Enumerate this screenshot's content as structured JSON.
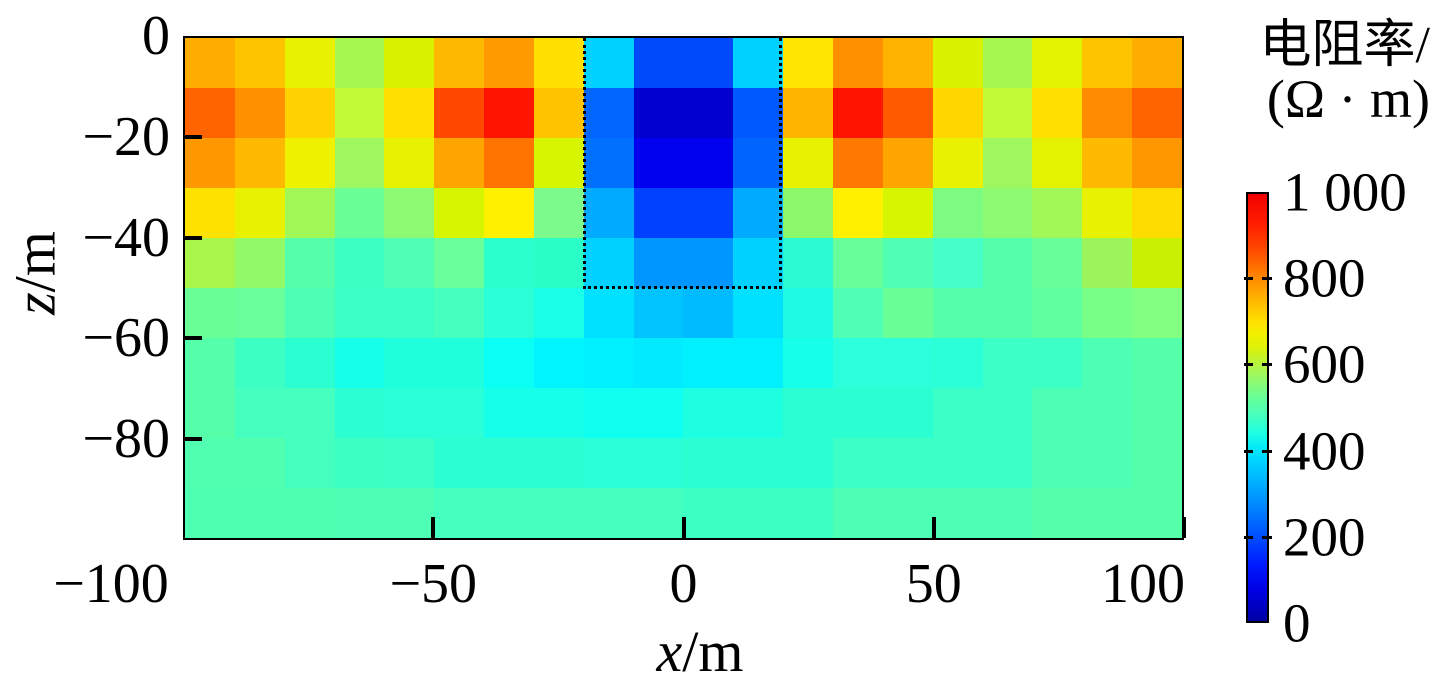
{
  "labels": {
    "colorbar_title1": "电阻率/",
    "colorbar_title2": "(Ω · m)",
    "xlabel_var": "x",
    "xlabel_rest": "/m",
    "zlabel_var": "z",
    "zlabel_rest": "/m"
  },
  "chart_data": {
    "type": "heatmap",
    "title": "电阻率/(Ω · m)",
    "xlabel": "x/m",
    "ylabel": "z/m",
    "x_range": [
      -100,
      100
    ],
    "z_range": [
      -100,
      0
    ],
    "grid": "off",
    "cell_size_m": 10,
    "col_x_edges": [
      -100,
      -90,
      -80,
      -70,
      -60,
      -50,
      -40,
      -30,
      -20,
      -10,
      0,
      10,
      20,
      30,
      40,
      50,
      60,
      70,
      80,
      90,
      100
    ],
    "row_z_edges": [
      0,
      -10,
      -20,
      -30,
      -40,
      -50,
      -60,
      -70,
      -80,
      -90,
      -100
    ],
    "x_ticks": {
      "values": [
        -100,
        -50,
        0,
        50,
        100
      ],
      "labels": [
        "−100",
        "−50",
        "0",
        "50",
        "100"
      ]
    },
    "z_ticks": {
      "values": [
        0,
        -20,
        -40,
        -60,
        -80
      ],
      "labels": [
        "0",
        "−20",
        "−40",
        "−60",
        "−80"
      ]
    },
    "colorbar": {
      "label": "电阻率/(Ω · m)",
      "min": 0,
      "max": 1000,
      "tick_values": [
        0,
        200,
        400,
        600,
        800,
        1000
      ],
      "tick_labels": [
        "0",
        "200",
        "400",
        "600",
        "800",
        "1 000"
      ],
      "notch_values": [
        200,
        400,
        600,
        800
      ],
      "position": "right"
    },
    "anomaly_box": {
      "x_min": -20,
      "x_max": 20,
      "z_min": -50,
      "z_max": 0,
      "line_style": "dotted",
      "color": "#000000"
    },
    "values": [
      [
        730,
        705,
        645,
        575,
        620,
        720,
        740,
        680,
        385,
        205,
        205,
        385,
        675,
        745,
        720,
        620,
        575,
        645,
        705,
        730
      ],
      [
        790,
        745,
        695,
        605,
        680,
        815,
        880,
        705,
        240,
        85,
        85,
        230,
        720,
        880,
        800,
        690,
        605,
        680,
        750,
        790
      ],
      [
        740,
        715,
        650,
        560,
        645,
        735,
        775,
        620,
        250,
        105,
        105,
        240,
        645,
        770,
        735,
        645,
        560,
        645,
        715,
        740
      ],
      [
        680,
        645,
        570,
        510,
        540,
        620,
        660,
        525,
        310,
        200,
        200,
        310,
        545,
        660,
        620,
        530,
        540,
        570,
        645,
        685
      ],
      [
        580,
        550,
        490,
        460,
        480,
        510,
        450,
        455,
        385,
        290,
        290,
        385,
        450,
        505,
        480,
        465,
        490,
        505,
        560,
        610
      ],
      [
        510,
        510,
        480,
        460,
        460,
        470,
        450,
        435,
        400,
        370,
        365,
        400,
        440,
        480,
        510,
        490,
        490,
        500,
        520,
        530
      ],
      [
        490,
        460,
        450,
        430,
        440,
        440,
        420,
        410,
        410,
        405,
        410,
        410,
        430,
        445,
        445,
        450,
        460,
        460,
        480,
        490
      ],
      [
        490,
        470,
        470,
        450,
        450,
        450,
        430,
        430,
        425,
        425,
        440,
        440,
        450,
        450,
        450,
        460,
        460,
        480,
        480,
        490
      ],
      [
        480,
        480,
        470,
        460,
        460,
        450,
        450,
        450,
        450,
        450,
        450,
        450,
        450,
        460,
        460,
        460,
        460,
        480,
        480,
        490
      ],
      [
        480,
        480,
        480,
        480,
        480,
        470,
        470,
        470,
        470,
        470,
        460,
        460,
        460,
        480,
        480,
        480,
        480,
        490,
        490,
        490
      ]
    ],
    "cell_colors": [
      [
        "#FFAD00",
        "#FFC400",
        "#E8F200",
        "#A6F74E",
        "#D8F200",
        "#FFB800",
        "#FF9B00",
        "#FFE000",
        "#00D2FF",
        "#0049FA",
        "#0049FA",
        "#00D2FF",
        "#FFE400",
        "#FF9100",
        "#FFB300",
        "#D8F200",
        "#A6F74E",
        "#E3F200",
        "#FFC400",
        "#FFAD00"
      ],
      [
        "#FF6400",
        "#FF9100",
        "#FFD200",
        "#C2FA38",
        "#FFE000",
        "#FF4800",
        "#FF1400",
        "#FFC300",
        "#0066FF",
        "#0000CE",
        "#0000CE",
        "#0058FF",
        "#FFB400",
        "#FF1400",
        "#FF5A00",
        "#FFD700",
        "#C2FA38",
        "#FFE000",
        "#FF8C00",
        "#FF6400"
      ],
      [
        "#FF9800",
        "#FFB900",
        "#EEF200",
        "#9EF75F",
        "#E8F200",
        "#FFA500",
        "#FF7300",
        "#D5F500",
        "#0070FF",
        "#0000EE",
        "#0000EE",
        "#0064FF",
        "#E8F200",
        "#FF7800",
        "#FFA500",
        "#E8F200",
        "#9EF75F",
        "#E3F200",
        "#FFB900",
        "#FF9800"
      ],
      [
        "#FFE100",
        "#E8F200",
        "#A0F755",
        "#69FF96",
        "#8CFA73",
        "#D5F500",
        "#FFF000",
        "#7DFA8C",
        "#00AAFF",
        "#0041FF",
        "#0041FF",
        "#00AAFF",
        "#8CF769",
        "#FFF000",
        "#D5F500",
        "#7DFA82",
        "#8CFA73",
        "#A0F755",
        "#E8F200",
        "#FFDC00"
      ],
      [
        "#AAF54B",
        "#91FA69",
        "#55FFAA",
        "#3CFFC3",
        "#50FFB4",
        "#69FF9B",
        "#2BFFCD",
        "#2BFFC8",
        "#00D2FF",
        "#0096FF",
        "#0096FF",
        "#00D2FF",
        "#2BFAD2",
        "#66FF99",
        "#50FFB4",
        "#44FFC8",
        "#55FFAA",
        "#66FF99",
        "#9BF55A",
        "#C8F000"
      ],
      [
        "#69FF96",
        "#69FF9B",
        "#4DFFB4",
        "#3CFFC8",
        "#3CFFC8",
        "#44FFBE",
        "#2BFFD7",
        "#19FFE8",
        "#00E1FF",
        "#00C3FF",
        "#00BBFF",
        "#00E1FF",
        "#1EFAE1",
        "#50FFB4",
        "#69FF96",
        "#55FFAA",
        "#55FFAA",
        "#60FFA0",
        "#77FF88",
        "#80FF80"
      ],
      [
        "#55FFAA",
        "#3CFFC3",
        "#2BFFD2",
        "#16FFE8",
        "#20FFDC",
        "#20FFDC",
        "#0AFFF5",
        "#00F5FF",
        "#00F0FF",
        "#00EBFF",
        "#00F0FF",
        "#00F0FF",
        "#16FFE8",
        "#2BFFDC",
        "#2BFFDC",
        "#2BFFD7",
        "#3CFFC8",
        "#3CFFC8",
        "#4DFFB4",
        "#55FFAA"
      ],
      [
        "#55FFAA",
        "#44FFBE",
        "#44FFBE",
        "#2BFFD2",
        "#2BFFD7",
        "#2BFFD7",
        "#16FFE8",
        "#16FFE8",
        "#0FFFF0",
        "#0FFFF0",
        "#1EFFE1",
        "#1EFFE1",
        "#2BFFD2",
        "#2BFFD2",
        "#2BFFD2",
        "#3CFFC8",
        "#3CFFC8",
        "#4DFFB4",
        "#4DFFB4",
        "#55FFAA"
      ],
      [
        "#50FFAF",
        "#50FFAF",
        "#44FFBE",
        "#3CFFC3",
        "#3CFFC8",
        "#2BFFD2",
        "#2BFFD2",
        "#2BFFD2",
        "#2BFFD7",
        "#2BFFD7",
        "#2BFFD2",
        "#2BFFD2",
        "#2BFFD2",
        "#3CFFC8",
        "#3CFFC8",
        "#3CFFC8",
        "#3CFFC8",
        "#4DFFB4",
        "#4DFFB4",
        "#55FFAA"
      ],
      [
        "#4DFFB0",
        "#4DFFB0",
        "#4DFFB0",
        "#4DFFB4",
        "#4DFFB4",
        "#44FFBE",
        "#44FFBE",
        "#44FFBE",
        "#44FFBE",
        "#44FFBE",
        "#3CFFC3",
        "#3CFFC3",
        "#3CFFC3",
        "#4DFFB4",
        "#4DFFB4",
        "#4DFFB4",
        "#4DFFB4",
        "#55FFAA",
        "#55FFAA",
        "#55FFAA"
      ]
    ],
    "colormap_stops": [
      {
        "pos": 0.0,
        "color": "#0000A5"
      },
      {
        "pos": 0.07,
        "color": "#0000E1"
      },
      {
        "pos": 0.13,
        "color": "#0019FF"
      },
      {
        "pos": 0.2,
        "color": "#0050FF"
      },
      {
        "pos": 0.27,
        "color": "#0087FF"
      },
      {
        "pos": 0.33,
        "color": "#00B4FF"
      },
      {
        "pos": 0.4,
        "color": "#00E6FF"
      },
      {
        "pos": 0.44,
        "color": "#1EFFE1"
      },
      {
        "pos": 0.48,
        "color": "#46FFBE"
      },
      {
        "pos": 0.52,
        "color": "#64FF9B"
      },
      {
        "pos": 0.56,
        "color": "#8CFA73"
      },
      {
        "pos": 0.6,
        "color": "#B4F541"
      },
      {
        "pos": 0.64,
        "color": "#DCF20A"
      },
      {
        "pos": 0.67,
        "color": "#F0F000"
      },
      {
        "pos": 0.7,
        "color": "#FFE100"
      },
      {
        "pos": 0.73,
        "color": "#FFC800"
      },
      {
        "pos": 0.76,
        "color": "#FFAF00"
      },
      {
        "pos": 0.8,
        "color": "#FF8C00"
      },
      {
        "pos": 0.84,
        "color": "#FF6400"
      },
      {
        "pos": 0.88,
        "color": "#FF4100"
      },
      {
        "pos": 0.93,
        "color": "#FF1E00"
      },
      {
        "pos": 1.0,
        "color": "#F00000"
      }
    ]
  }
}
